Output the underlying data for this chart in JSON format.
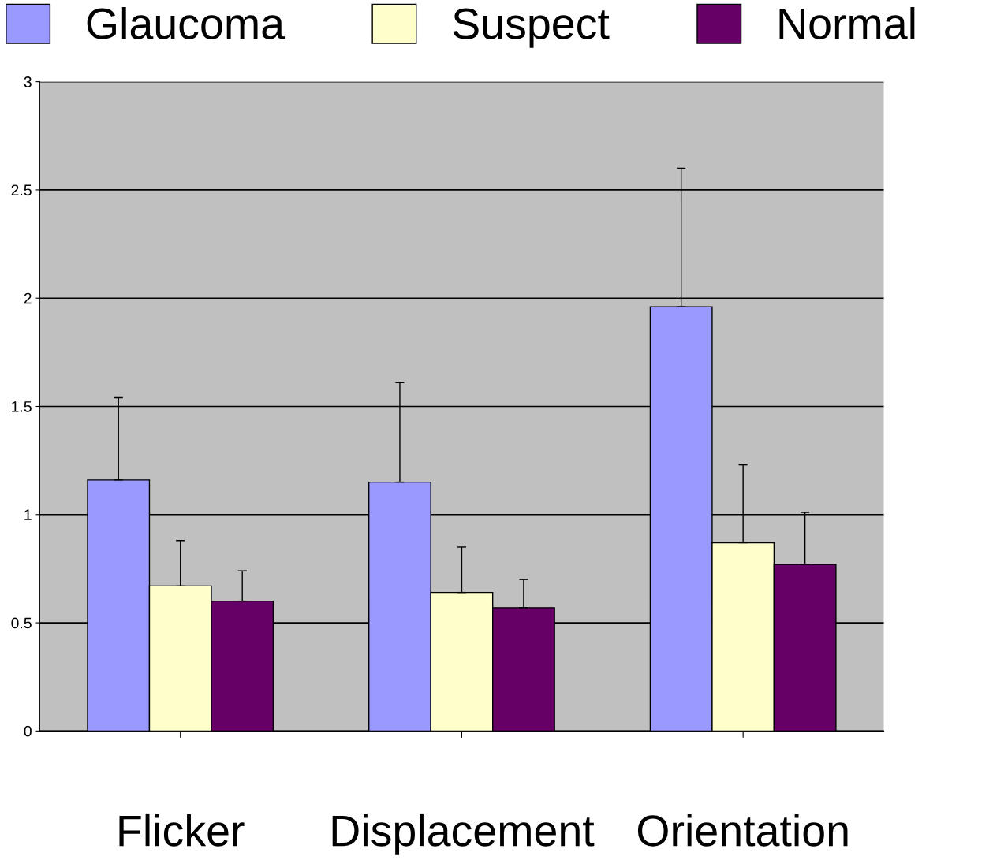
{
  "chart_data": {
    "type": "bar",
    "categories": [
      "Flicker",
      "Displacement",
      "Orientation"
    ],
    "series": [
      {
        "name": "Glaucoma",
        "color": "#9999ff",
        "values": [
          1.16,
          1.15,
          1.96
        ],
        "errors": [
          [
            1.16,
            1.54
          ],
          [
            1.15,
            1.61
          ],
          [
            1.96,
            2.6
          ]
        ]
      },
      {
        "name": "Suspect",
        "color": "#ffffcc",
        "values": [
          0.67,
          0.64,
          0.87
        ],
        "errors": [
          [
            0.67,
            0.88
          ],
          [
            0.64,
            0.85
          ],
          [
            0.87,
            1.23
          ]
        ]
      },
      {
        "name": "Normal",
        "color": "#660066",
        "values": [
          0.6,
          0.57,
          0.77
        ],
        "errors": [
          [
            0.6,
            0.74
          ],
          [
            0.57,
            0.7
          ],
          [
            0.77,
            1.01
          ]
        ]
      }
    ],
    "ylim": [
      0,
      3
    ],
    "yticks": [
      0,
      0.5,
      1,
      1.5,
      2,
      2.5,
      3
    ],
    "grid": "y",
    "legend": "top"
  }
}
